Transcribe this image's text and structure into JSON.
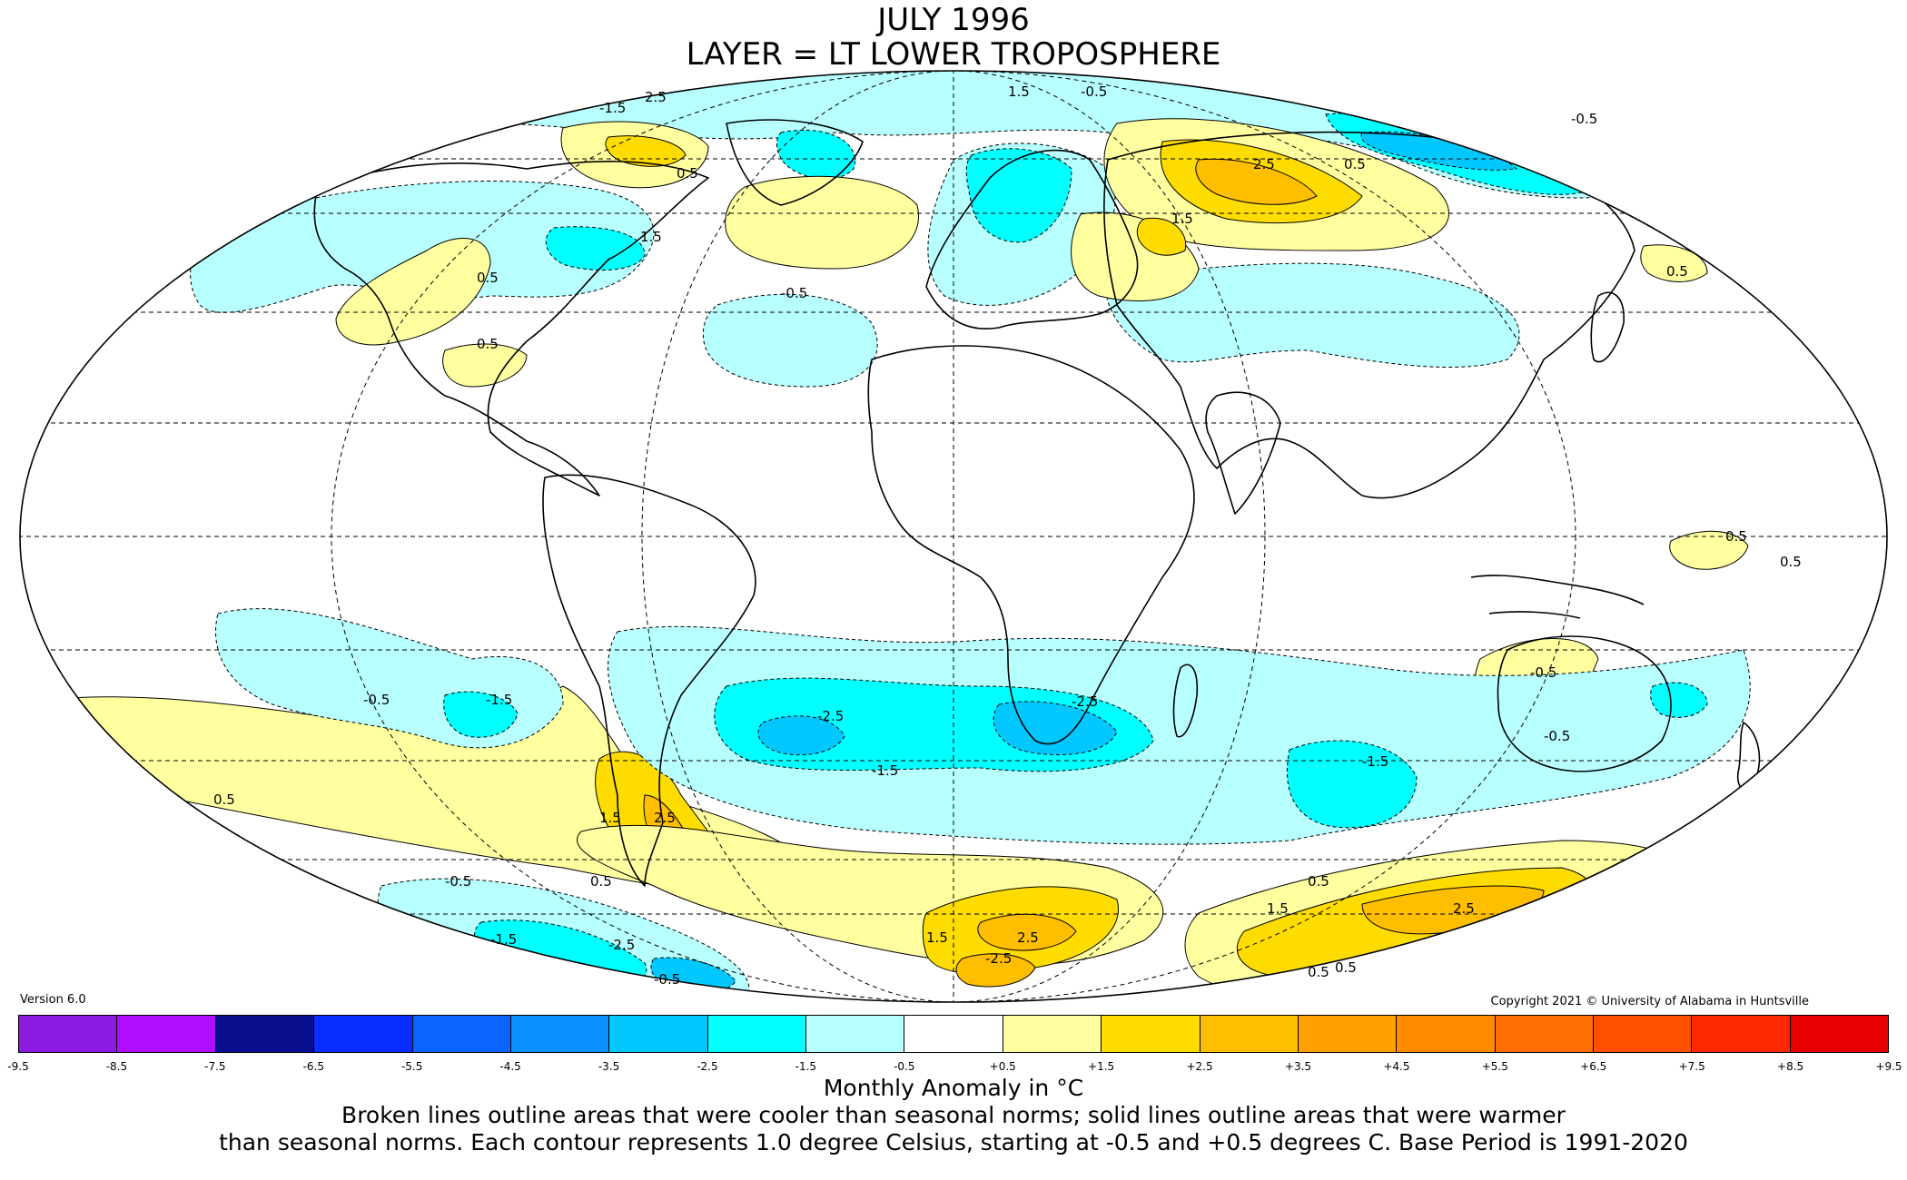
{
  "title": "JULY 1996",
  "subtitle": "LAYER = LT LOWER TROPOSPHERE",
  "version": "Version 6.0",
  "copyright": "Copyright 2021 © University of Alabama in Huntsville",
  "legend_title": "Monthly Anomaly in °C",
  "caption": [
    "Broken lines outline areas that were cooler than seasonal norms; solid lines outline areas that were warmer",
    "than seasonal norms. Each contour represents 1.0 degree Celsius, starting at -0.5 and +0.5 degrees C. Base Period is 1991-2020"
  ],
  "colorbar": {
    "ticks": [
      "-9.5",
      "-8.5",
      "-7.5",
      "-6.5",
      "-5.5",
      "-4.5",
      "-3.5",
      "-2.5",
      "-1.5",
      "-0.5",
      "+0.5",
      "+1.5",
      "+2.5",
      "+3.5",
      "+4.5",
      "+5.5",
      "+6.5",
      "+7.5",
      "+8.5",
      "+9.5"
    ],
    "colors": [
      "#3a0a6b",
      "#5c0aa3",
      "#8c1ae0",
      "#b00cff",
      "#0a0f8f",
      "#0a2dff",
      "#0a64ff",
      "#0a91ff",
      "#00c8ff",
      "#00ffff",
      "#b8ffff",
      "#ffffff",
      "#ffffa0",
      "#ffdc00",
      "#ffbe00",
      "#ffa000",
      "#ff8c00",
      "#ff6e00",
      "#ff5000",
      "#ff2800",
      "#e60000",
      "#b40000"
    ]
  },
  "map_colors": {
    "ocean": "#ffffff",
    "cool1": "#b8ffff",
    "cool2": "#00ffff",
    "cool3": "#00c8ff",
    "warm1": "#ffffa0",
    "warm2": "#ffdc00",
    "warm3": "#ffbe00"
  },
  "contour_labels": [
    "2.5",
    "-1.5",
    "-0.5",
    "1.5",
    "0.5",
    "-0.5",
    "1.5",
    "2.5",
    "0.5",
    "-0.5",
    "0.5",
    "0.5",
    "1.5",
    "0.5",
    "0.5",
    "0.5",
    "-0.5",
    "-1.5",
    "-2.5",
    "-1.5",
    "-2.5",
    "-1.5",
    "-0.5",
    "0.5",
    "1.5",
    "2.5",
    "0.5",
    "-0.5",
    "-1.5",
    "-2.5",
    "-0.5",
    "1.5",
    "2.5",
    "-2.5",
    "0.5",
    "1.5",
    "2.5",
    "-0.5",
    "0.5",
    "0.5"
  ],
  "chart_data": {
    "type": "heatmap",
    "title": "JULY 1996",
    "subtitle": "LAYER = LT LOWER TROPOSPHERE",
    "colorbar_label": "Monthly Anomaly in °C",
    "contour_interval": 1.0,
    "base_period": "1991-2020",
    "bins": [
      "-9.5",
      "-8.5",
      "-7.5",
      "-6.5",
      "-5.5",
      "-4.5",
      "-3.5",
      "-2.5",
      "-1.5",
      "-0.5",
      "+0.5",
      "+1.5",
      "+2.5",
      "+3.5",
      "+4.5",
      "+5.5",
      "+6.5",
      "+7.5",
      "+8.5",
      "+9.5"
    ]
  }
}
